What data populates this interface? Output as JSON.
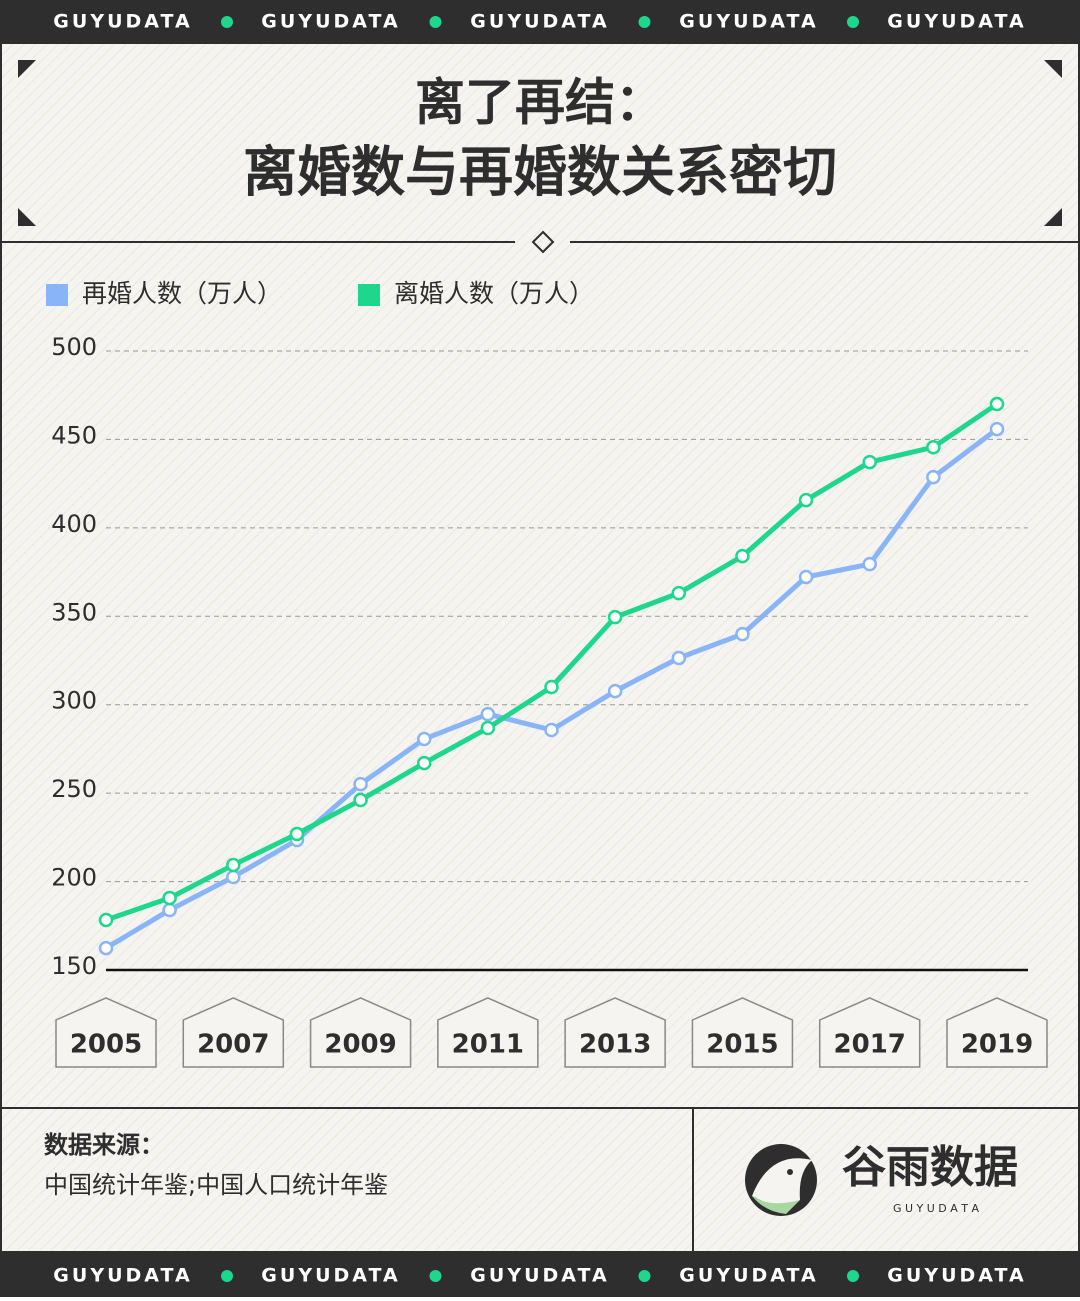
{
  "banner_top": [
    "GUYUDATA",
    "GUYUDATA",
    "GUYUDATA",
    "GUYUDATA",
    "GUYUDATA"
  ],
  "banner_bottom": [
    "GUYUDATA",
    "GUYUDATA",
    "GUYUDATA",
    "GUYUDATA",
    "GUYUDATA"
  ],
  "chart_data": {
    "type": "line",
    "title": "离了再结：",
    "subtitle": "离婚数与再婚数关系密切",
    "x": [
      2005,
      2006,
      2007,
      2008,
      2009,
      2010,
      2011,
      2012,
      2013,
      2014,
      2015,
      2016,
      2017,
      2018,
      2019
    ],
    "series": [
      {
        "name": "再婚人数（万人）",
        "color": "#8ab4f8",
        "values": [
          162.4,
          183.9,
          202.6,
          223.5,
          255.1,
          280.6,
          294.7,
          285.7,
          307.7,
          326.4,
          339.9,
          372.2,
          379.5,
          428.7,
          455.8
        ]
      },
      {
        "name": "离婚人数（万人）",
        "color": "#1ed68c",
        "values": [
          178.3,
          190.7,
          209.4,
          226.9,
          246.1,
          267.0,
          286.8,
          310.0,
          349.5,
          363.1,
          384.0,
          415.7,
          437.2,
          445.6,
          470.0
        ]
      }
    ],
    "xlim": [
      2005,
      2019
    ],
    "xticks": [
      2005,
      2007,
      2009,
      2011,
      2013,
      2015,
      2017,
      2019
    ],
    "ylim": [
      150,
      500
    ],
    "yticks": [
      150,
      200,
      250,
      300,
      350,
      400,
      450,
      500
    ],
    "grid": true
  },
  "source": {
    "label": "数据来源：",
    "text": "中国统计年鉴;中国人口统计年鉴"
  },
  "logo": {
    "name": "谷雨数据",
    "tagline": "G U Y U D A T A"
  }
}
